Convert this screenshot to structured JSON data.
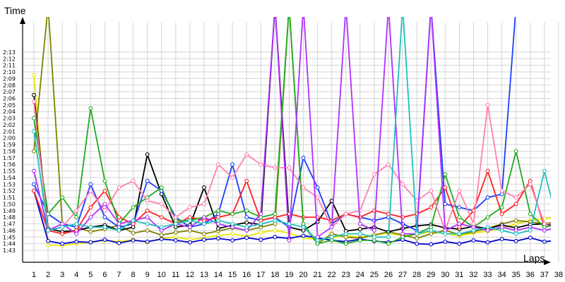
{
  "chart_data": {
    "type": "line",
    "ylabel": "Time",
    "xlabel": "Laps",
    "x": [
      1,
      2,
      3,
      4,
      5,
      6,
      7,
      8,
      9,
      10,
      11,
      12,
      13,
      14,
      15,
      16,
      17,
      18,
      19,
      20,
      21,
      22,
      23,
      24,
      25,
      26,
      27,
      28,
      29,
      30,
      31,
      32,
      33,
      34,
      35,
      36,
      37,
      38
    ],
    "y_ticks": [
      "1:43",
      "1:44",
      "1:45",
      "1:46",
      "1:47",
      "1:48",
      "1:49",
      "1:50",
      "1:51",
      "1:52",
      "1:53",
      "1:54",
      "1:55",
      "1:56",
      "1:57",
      "1:58",
      "1:59",
      "2:00",
      "2:01",
      "2:02",
      "2:03",
      "2:04",
      "2:05",
      "2:06",
      "2:07",
      "2:08",
      "2:09",
      "2:10",
      "2:11",
      "2:12",
      "2:13"
    ],
    "ylim_seconds": [
      103,
      133
    ],
    "grid": true,
    "series": [
      {
        "color": "#e8e800",
        "values": [
          129.5,
          103.8,
          103.7,
          104.0,
          104.2,
          104.5,
          104.3,
          104.6,
          104.2,
          104.8,
          105.0,
          104.6,
          104.9,
          105.2,
          105.5,
          105.1,
          105.7,
          106.0,
          105.6,
          104.9,
          104.6,
          104.9,
          105.2,
          105.0,
          105.3,
          105.6,
          105.2,
          105.4,
          105.8,
          105.5,
          105.2,
          105.6,
          105.9,
          106.3,
          107.0,
          107.5,
          107.8,
          108.0
        ]
      },
      {
        "color": "#808000",
        "values": [
          118.0,
          140.0,
          107.0,
          106.5,
          105.8,
          106.2,
          106.8,
          105.6,
          106.0,
          105.3,
          105.7,
          106.0,
          105.5,
          105.9,
          106.4,
          106.0,
          106.5,
          107.0,
          140.0,
          106.8,
          104.0,
          105.5,
          105.0,
          104.8,
          105.3,
          105.8,
          105.3,
          104.8,
          105.5,
          106.0,
          105.4,
          105.8,
          106.3,
          107.0,
          107.5,
          107.3,
          107.0,
          107.4
        ]
      },
      {
        "color": "#000000",
        "values": [
          126.5,
          106.3,
          105.8,
          106.0,
          106.5,
          106.8,
          106.0,
          106.5,
          117.5,
          111.5,
          106.5,
          106.8,
          112.5,
          106.3,
          106.8,
          107.2,
          106.9,
          140.0,
          106.5,
          106.0,
          107.3,
          110.5,
          105.9,
          106.2,
          106.5,
          105.8,
          106.3,
          106.7,
          106.9,
          106.4,
          106.2,
          106.6,
          106.3,
          106.8,
          106.4,
          106.9,
          107.0,
          106.6
        ]
      },
      {
        "color": "#0000cc",
        "values": [
          112.0,
          104.4,
          104.0,
          104.3,
          104.2,
          104.6,
          104.1,
          104.5,
          104.3,
          104.7,
          104.5,
          104.2,
          104.6,
          104.8,
          104.5,
          104.9,
          104.6,
          105.0,
          104.8,
          105.2,
          104.9,
          104.5,
          104.3,
          104.7,
          104.4,
          104.2,
          104.6,
          104.0,
          103.9,
          104.3,
          104.0,
          104.5,
          104.2,
          104.7,
          104.4,
          104.9,
          104.3,
          104.5
        ]
      },
      {
        "color": "#1a3fff",
        "values": [
          113.0,
          108.5,
          107.0,
          106.5,
          113.0,
          108.0,
          106.5,
          107.0,
          113.5,
          112.0,
          108.0,
          106.5,
          107.0,
          108.5,
          116.0,
          108.0,
          107.5,
          108.0,
          106.5,
          117.0,
          112.5,
          107.0,
          108.5,
          108.0,
          107.5,
          108.0,
          107.0,
          106.0,
          140.0,
          110.0,
          109.5,
          109.0,
          111.0,
          111.5,
          140.0,
          140.0,
          140.0,
          140.0
        ]
      },
      {
        "color": "#ff2020",
        "values": [
          112.0,
          106.0,
          105.5,
          106.0,
          109.5,
          112.0,
          108.0,
          107.0,
          109.0,
          108.0,
          107.0,
          108.0,
          107.5,
          108.0,
          108.5,
          113.5,
          107.5,
          108.0,
          108.5,
          108.0,
          108.0,
          107.5,
          108.5,
          108.0,
          109.0,
          108.5,
          108.0,
          108.5,
          109.5,
          112.5,
          106.5,
          109.0,
          115.0,
          108.5,
          110.0,
          113.5,
          106.5,
          107.0
        ]
      },
      {
        "color": "#22aa22",
        "values": [
          123.0,
          108.5,
          111.0,
          108.0,
          124.5,
          113.5,
          107.0,
          109.5,
          111.0,
          112.5,
          107.5,
          107.5,
          108.0,
          109.0,
          108.5,
          109.0,
          108.0,
          108.5,
          140.0,
          107.0,
          104.0,
          104.5,
          104.0,
          104.5,
          104.5,
          104.0,
          105.0,
          105.5,
          106.5,
          114.5,
          108.0,
          106.5,
          108.0,
          109.5,
          118.0,
          108.5,
          106.5,
          107.0
        ]
      },
      {
        "color": "#ff80b0",
        "values": [
          125.5,
          106.0,
          106.5,
          109.0,
          112.0,
          109.0,
          112.5,
          113.5,
          110.5,
          110.0,
          108.0,
          109.5,
          110.0,
          116.0,
          114.0,
          117.5,
          116.0,
          115.5,
          115.5,
          112.5,
          111.0,
          106.5,
          108.5,
          109.0,
          114.5,
          116.0,
          113.0,
          110.5,
          112.0,
          106.0,
          112.0,
          107.0,
          125.0,
          112.0,
          111.0,
          113.0,
          107.0,
          107.0
        ]
      },
      {
        "color": "#b030ff",
        "values": [
          115.0,
          106.0,
          107.0,
          105.5,
          108.0,
          110.0,
          107.0,
          107.5,
          108.0,
          106.0,
          107.0,
          106.5,
          108.0,
          107.0,
          106.5,
          106.0,
          108.5,
          140.0,
          104.5,
          140.0,
          105.0,
          106.5,
          140.0,
          107.0,
          106.0,
          140.0,
          105.5,
          105.5,
          140.0,
          106.0,
          107.0,
          106.5,
          106.0,
          106.5,
          106.0,
          106.5,
          106.0,
          106.5
        ]
      },
      {
        "color": "#20c0c0",
        "values": [
          121.0,
          106.0,
          106.5,
          107.0,
          106.5,
          106.5,
          106.0,
          107.5,
          107.0,
          106.5,
          107.0,
          107.5,
          107.0,
          107.5,
          107.0,
          106.5,
          107.0,
          107.5,
          107.0,
          106.5,
          104.5,
          105.0,
          105.5,
          105.5,
          105.0,
          105.0,
          140.0,
          105.5,
          106.0,
          105.5,
          105.5,
          106.0,
          106.5,
          106.0,
          105.5,
          106.0,
          115.0,
          106.5
        ]
      }
    ]
  }
}
